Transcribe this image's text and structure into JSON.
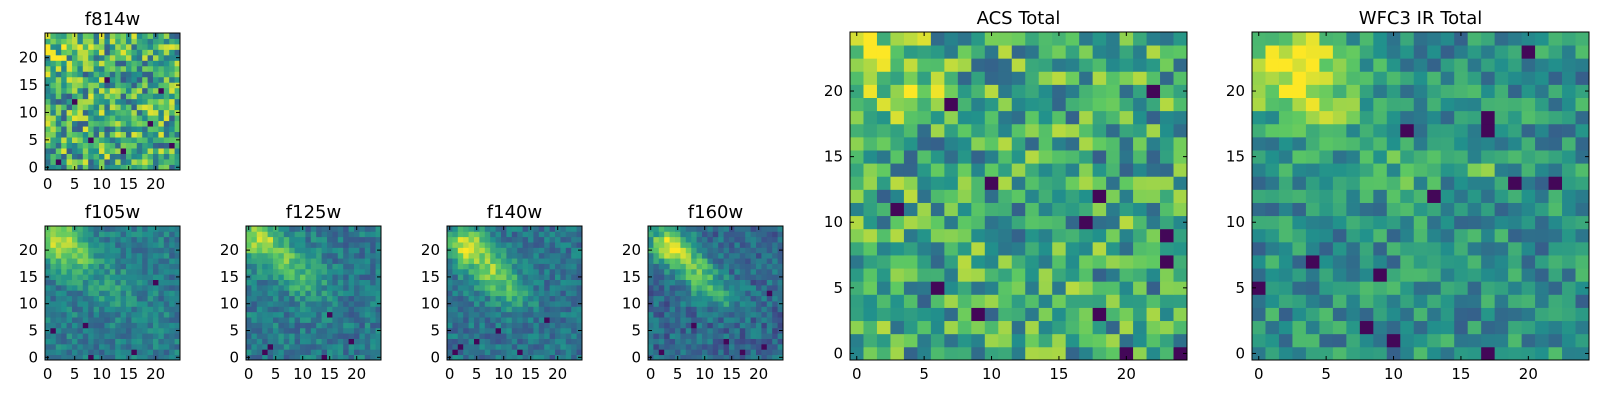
{
  "figure": {
    "background": "#ffffff"
  },
  "colormap": {
    "name": "viridis",
    "stops": [
      "#440154",
      "#3b528b",
      "#21918c",
      "#5ec962",
      "#fde725"
    ]
  },
  "chart_data": [
    {
      "type": "heatmap",
      "id": "f814w",
      "title": "f814w",
      "grid_size": [
        25,
        25
      ],
      "xlim": [
        0,
        24
      ],
      "ylim": [
        0,
        24
      ],
      "xticks": [
        0,
        5,
        10,
        15,
        20
      ],
      "yticks": [
        0,
        5,
        10,
        15,
        20
      ],
      "seed": 11,
      "intensity": {
        "base": 0.62,
        "noise": 0.34,
        "blobs": [
          {
            "x": 1,
            "y": 23,
            "amp": 0.15,
            "sigma": 2.5
          }
        ],
        "lows": [
          [
            14,
            3
          ],
          [
            19,
            8
          ],
          [
            8,
            5
          ],
          [
            21,
            14
          ],
          [
            2,
            1
          ],
          [
            11,
            16
          ],
          [
            23,
            4
          ],
          [
            5,
            12
          ]
        ]
      }
    },
    {
      "type": "heatmap",
      "id": "f105w",
      "title": "f105w",
      "grid_size": [
        25,
        25
      ],
      "xlim": [
        0,
        24
      ],
      "ylim": [
        0,
        24
      ],
      "xticks": [
        0,
        5,
        10,
        15,
        20
      ],
      "yticks": [
        0,
        5,
        10,
        15,
        20
      ],
      "seed": 21,
      "intensity": {
        "base": 0.42,
        "noise": 0.13,
        "blobs": [
          {
            "x": 2,
            "y": 22,
            "amp": 0.5,
            "sigma": 2.8
          },
          {
            "x": 6,
            "y": 18,
            "amp": 0.25,
            "sigma": 2.5
          },
          {
            "x": 12,
            "y": 13,
            "amp": 0.12,
            "sigma": 3.0
          }
        ],
        "lows": [
          [
            20,
            14
          ],
          [
            7,
            6
          ],
          [
            8,
            0
          ],
          [
            16,
            1
          ],
          [
            1,
            5
          ]
        ]
      }
    },
    {
      "type": "heatmap",
      "id": "f125w",
      "title": "f125w",
      "grid_size": [
        25,
        25
      ],
      "xlim": [
        0,
        24
      ],
      "ylim": [
        0,
        24
      ],
      "xticks": [
        0,
        5,
        10,
        15,
        20
      ],
      "yticks": [
        0,
        5,
        10,
        15,
        20
      ],
      "seed": 31,
      "intensity": {
        "base": 0.4,
        "noise": 0.14,
        "blobs": [
          {
            "x": 2,
            "y": 22,
            "amp": 0.5,
            "sigma": 2.6
          },
          {
            "x": 7,
            "y": 18,
            "amp": 0.3,
            "sigma": 2.5
          },
          {
            "x": 11,
            "y": 14,
            "amp": 0.2,
            "sigma": 2.8
          }
        ],
        "lows": [
          [
            3,
            1
          ],
          [
            4,
            2
          ],
          [
            14,
            0
          ],
          [
            19,
            3
          ],
          [
            15,
            8
          ]
        ]
      }
    },
    {
      "type": "heatmap",
      "id": "f140w",
      "title": "f140w",
      "grid_size": [
        25,
        25
      ],
      "xlim": [
        0,
        24
      ],
      "ylim": [
        0,
        24
      ],
      "xticks": [
        0,
        5,
        10,
        15,
        20
      ],
      "yticks": [
        0,
        5,
        10,
        15,
        20
      ],
      "seed": 41,
      "intensity": {
        "base": 0.38,
        "noise": 0.13,
        "blobs": [
          {
            "x": 3,
            "y": 21,
            "amp": 0.55,
            "sigma": 2.4
          },
          {
            "x": 7,
            "y": 17,
            "amp": 0.35,
            "sigma": 2.6
          },
          {
            "x": 10,
            "y": 14,
            "amp": 0.25,
            "sigma": 2.5
          },
          {
            "x": 13,
            "y": 11,
            "amp": 0.15,
            "sigma": 2.2
          }
        ],
        "lows": [
          [
            9,
            5
          ],
          [
            1,
            1
          ],
          [
            2,
            2
          ],
          [
            13,
            1
          ],
          [
            18,
            7
          ],
          [
            5,
            3
          ]
        ]
      }
    },
    {
      "type": "heatmap",
      "id": "f160w",
      "title": "f160w",
      "grid_size": [
        25,
        25
      ],
      "xlim": [
        0,
        24
      ],
      "ylim": [
        0,
        24
      ],
      "xticks": [
        0,
        5,
        10,
        15,
        20
      ],
      "yticks": [
        0,
        5,
        10,
        15,
        20
      ],
      "seed": 51,
      "intensity": {
        "base": 0.34,
        "noise": 0.14,
        "blobs": [
          {
            "x": 3,
            "y": 21,
            "amp": 0.6,
            "sigma": 2.3
          },
          {
            "x": 7,
            "y": 18,
            "amp": 0.35,
            "sigma": 2.4
          },
          {
            "x": 10,
            "y": 14,
            "amp": 0.3,
            "sigma": 2.4
          },
          {
            "x": 14,
            "y": 11,
            "amp": 0.2,
            "sigma": 2.2
          }
        ],
        "lows": [
          [
            2,
            1
          ],
          [
            14,
            3
          ],
          [
            17,
            1
          ],
          [
            22,
            12
          ],
          [
            21,
            2
          ],
          [
            8,
            6
          ]
        ]
      }
    },
    {
      "type": "heatmap",
      "id": "acs-total",
      "title": "ACS Total",
      "grid_size": [
        25,
        25
      ],
      "xlim": [
        0,
        24
      ],
      "ylim": [
        0,
        24
      ],
      "xticks": [
        0,
        5,
        10,
        15,
        20
      ],
      "yticks": [
        0,
        5,
        10,
        15,
        20
      ],
      "seed": 61,
      "intensity": {
        "base": 0.6,
        "noise": 0.3,
        "blobs": [
          {
            "x": 1,
            "y": 23,
            "amp": 0.35,
            "sigma": 2.0
          },
          {
            "x": 4,
            "y": 21,
            "amp": 0.15,
            "sigma": 2.0
          }
        ],
        "lows": [
          [
            6,
            5
          ],
          [
            3,
            11
          ],
          [
            17,
            10
          ],
          [
            18,
            12
          ],
          [
            23,
            7
          ],
          [
            23,
            9
          ],
          [
            20,
            0
          ],
          [
            24,
            0
          ],
          [
            9,
            3
          ],
          [
            18,
            3
          ],
          [
            22,
            20
          ],
          [
            7,
            19
          ],
          [
            10,
            13
          ]
        ]
      }
    },
    {
      "type": "heatmap",
      "id": "wfc3-ir-total",
      "title": "WFC3 IR Total",
      "grid_size": [
        25,
        25
      ],
      "xlim": [
        0,
        24
      ],
      "ylim": [
        0,
        24
      ],
      "xticks": [
        0,
        5,
        10,
        15,
        20
      ],
      "yticks": [
        0,
        5,
        10,
        15,
        20
      ],
      "seed": 71,
      "intensity": {
        "base": 0.5,
        "noise": 0.2,
        "blobs": [
          {
            "x": 2,
            "y": 22,
            "amp": 0.4,
            "sigma": 2.6
          },
          {
            "x": 5,
            "y": 20,
            "amp": 0.25,
            "sigma": 2.4
          },
          {
            "x": 11,
            "y": 14,
            "amp": 0.12,
            "sigma": 2.5
          },
          {
            "x": 17,
            "y": 14,
            "amp": 0.2,
            "sigma": 0.9
          }
        ],
        "lows": [
          [
            0,
            5
          ],
          [
            4,
            7
          ],
          [
            9,
            6
          ],
          [
            17,
            0
          ],
          [
            8,
            2
          ],
          [
            10,
            1
          ],
          [
            19,
            13
          ],
          [
            22,
            13
          ],
          [
            13,
            12
          ],
          [
            17,
            18
          ],
          [
            17,
            17
          ],
          [
            11,
            17
          ],
          [
            20,
            23
          ]
        ]
      }
    }
  ]
}
